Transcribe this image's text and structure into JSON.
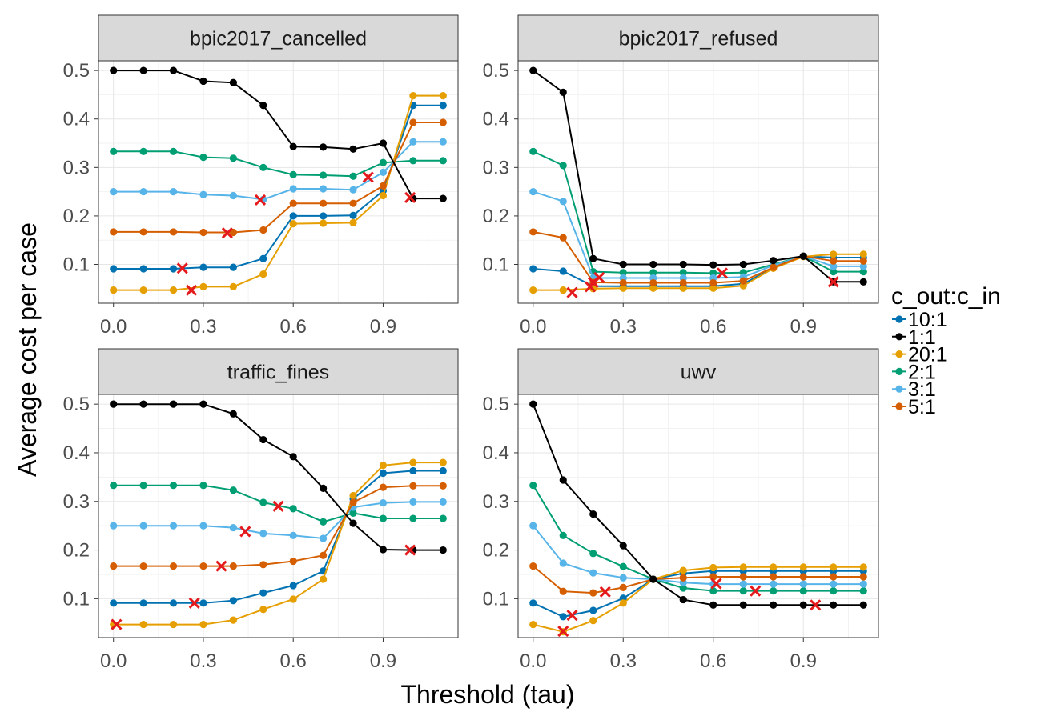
{
  "chart_data": {
    "type": "line",
    "xlabel": "Threshold (tau)",
    "ylabel": "Average cost per case",
    "xlim": [
      -0.05,
      1.15
    ],
    "ylim": [
      0.02,
      0.52
    ],
    "x_ticks": [
      0.0,
      0.3,
      0.6,
      0.9
    ],
    "x_tick_labels": [
      "0.0",
      "0.3",
      "0.6",
      "0.9"
    ],
    "y_ticks": [
      0.1,
      0.2,
      0.3,
      0.4,
      0.5
    ],
    "y_tick_labels": [
      "0.1",
      "0.2",
      "0.3",
      "0.4",
      "0.5"
    ],
    "grid": true,
    "legend": {
      "title": "c_out:c_in",
      "position": "right",
      "entries": [
        {
          "label": "10:1",
          "color": "#0072B2"
        },
        {
          "label": "1:1",
          "color": "#000000"
        },
        {
          "label": "20:1",
          "color": "#E69F00"
        },
        {
          "label": "2:1",
          "color": "#009E73"
        },
        {
          "label": "3:1",
          "color": "#56B4E9"
        },
        {
          "label": "5:1",
          "color": "#D55E00"
        }
      ]
    },
    "marker_color": "#E41A1C",
    "x": [
      0.0,
      0.1,
      0.2,
      0.3,
      0.4,
      0.5,
      0.6,
      0.7,
      0.8,
      0.9,
      1.0,
      1.1
    ],
    "panels": [
      {
        "title": "bpic2017_cancelled",
        "series": [
          {
            "name": "1:1",
            "values": [
              0.5,
              0.5,
              0.5,
              0.478,
              0.475,
              0.428,
              0.343,
              0.342,
              0.338,
              0.35,
              0.236,
              0.236
            ],
            "best": [
              0.99,
              0.238
            ]
          },
          {
            "name": "2:1",
            "values": [
              0.333,
              0.333,
              0.333,
              0.321,
              0.319,
              0.3,
              0.285,
              0.284,
              0.282,
              0.31,
              0.314,
              0.314
            ],
            "best": [
              0.85,
              0.28
            ]
          },
          {
            "name": "3:1",
            "values": [
              0.25,
              0.25,
              0.25,
              0.244,
              0.242,
              0.234,
              0.256,
              0.256,
              0.254,
              0.29,
              0.353,
              0.353
            ],
            "best": [
              0.49,
              0.233
            ]
          },
          {
            "name": "5:1",
            "values": [
              0.167,
              0.167,
              0.167,
              0.166,
              0.166,
              0.171,
              0.226,
              0.226,
              0.226,
              0.262,
              0.393,
              0.393
            ],
            "best": [
              0.38,
              0.165
            ]
          },
          {
            "name": "10:1",
            "values": [
              0.091,
              0.091,
              0.091,
              0.094,
              0.094,
              0.112,
              0.2,
              0.2,
              0.201,
              0.252,
              0.428,
              0.428
            ],
            "best": [
              0.23,
              0.092
            ]
          },
          {
            "name": "20:1",
            "values": [
              0.047,
              0.047,
              0.047,
              0.054,
              0.054,
              0.08,
              0.184,
              0.185,
              0.186,
              0.242,
              0.448,
              0.448
            ],
            "best": [
              0.26,
              0.047
            ]
          }
        ]
      },
      {
        "title": "bpic2017_refused",
        "series": [
          {
            "name": "1:1",
            "values": [
              0.5,
              0.455,
              0.112,
              0.1,
              0.1,
              0.1,
              0.099,
              0.1,
              0.108,
              0.117,
              0.064,
              0.064
            ],
            "best": [
              1.0,
              0.064
            ]
          },
          {
            "name": "2:1",
            "values": [
              0.333,
              0.304,
              0.085,
              0.083,
              0.083,
              0.083,
              0.082,
              0.083,
              0.1,
              0.117,
              0.085,
              0.085
            ],
            "best": [
              0.63,
              0.082
            ]
          },
          {
            "name": "3:1",
            "values": [
              0.25,
              0.23,
              0.072,
              0.072,
              0.072,
              0.072,
              0.072,
              0.074,
              0.098,
              0.117,
              0.096,
              0.096
            ],
            "best": [
              0.22,
              0.073
            ]
          },
          {
            "name": "5:1",
            "values": [
              0.167,
              0.155,
              0.063,
              0.062,
              0.062,
              0.062,
              0.062,
              0.066,
              0.094,
              0.117,
              0.107,
              0.107
            ],
            "best": [
              0.2,
              0.063
            ]
          },
          {
            "name": "10:1",
            "values": [
              0.091,
              0.086,
              0.055,
              0.055,
              0.055,
              0.055,
              0.055,
              0.06,
              0.093,
              0.117,
              0.114,
              0.114
            ],
            "best": [
              0.19,
              0.054
            ]
          },
          {
            "name": "20:1",
            "values": [
              0.047,
              0.047,
              0.05,
              0.051,
              0.051,
              0.051,
              0.051,
              0.056,
              0.092,
              0.116,
              0.121,
              0.121
            ],
            "best": [
              0.13,
              0.042
            ]
          }
        ]
      },
      {
        "title": "traffic_fines",
        "series": [
          {
            "name": "1:1",
            "values": [
              0.5,
              0.5,
              0.5,
              0.5,
              0.48,
              0.427,
              0.392,
              0.327,
              0.255,
              0.201,
              0.2,
              0.2
            ],
            "best": [
              0.99,
              0.2
            ]
          },
          {
            "name": "2:1",
            "values": [
              0.333,
              0.333,
              0.333,
              0.333,
              0.323,
              0.298,
              0.285,
              0.258,
              0.276,
              0.265,
              0.265,
              0.265
            ],
            "best": [
              0.55,
              0.29
            ]
          },
          {
            "name": "3:1",
            "values": [
              0.25,
              0.25,
              0.25,
              0.25,
              0.246,
              0.234,
              0.23,
              0.224,
              0.288,
              0.297,
              0.299,
              0.299
            ],
            "best": [
              0.44,
              0.238
            ]
          },
          {
            "name": "5:1",
            "values": [
              0.167,
              0.167,
              0.167,
              0.167,
              0.167,
              0.17,
              0.177,
              0.189,
              0.298,
              0.329,
              0.332,
              0.332
            ],
            "best": [
              0.36,
              0.167
            ]
          },
          {
            "name": "10:1",
            "values": [
              0.091,
              0.091,
              0.091,
              0.091,
              0.096,
              0.112,
              0.127,
              0.157,
              0.305,
              0.358,
              0.363,
              0.363
            ],
            "best": [
              0.27,
              0.091
            ]
          },
          {
            "name": "20:1",
            "values": [
              0.047,
              0.047,
              0.047,
              0.047,
              0.056,
              0.078,
              0.099,
              0.14,
              0.312,
              0.374,
              0.38,
              0.38
            ],
            "best": [
              0.01,
              0.047
            ]
          }
        ]
      },
      {
        "title": "uwv",
        "series": [
          {
            "name": "1:1",
            "values": [
              0.5,
              0.344,
              0.274,
              0.209,
              0.14,
              0.098,
              0.087,
              0.087,
              0.087,
              0.087,
              0.087,
              0.087
            ],
            "best": [
              0.94,
              0.087
            ]
          },
          {
            "name": "2:1",
            "values": [
              0.333,
              0.23,
              0.193,
              0.166,
              0.14,
              0.122,
              0.116,
              0.116,
              0.116,
              0.116,
              0.116,
              0.116
            ],
            "best": [
              0.74,
              0.116
            ]
          },
          {
            "name": "3:1",
            "values": [
              0.25,
              0.173,
              0.153,
              0.143,
              0.14,
              0.133,
              0.13,
              0.13,
              0.13,
              0.13,
              0.13,
              0.13
            ],
            "best": [
              0.61,
              0.131
            ]
          },
          {
            "name": "5:1",
            "values": [
              0.167,
              0.115,
              0.112,
              0.123,
              0.14,
              0.143,
              0.145,
              0.145,
              0.145,
              0.145,
              0.145,
              0.145
            ],
            "best": [
              0.24,
              0.114
            ]
          },
          {
            "name": "10:1",
            "values": [
              0.091,
              0.063,
              0.076,
              0.101,
              0.14,
              0.152,
              0.157,
              0.157,
              0.157,
              0.157,
              0.157,
              0.157
            ],
            "best": [
              0.13,
              0.066
            ]
          },
          {
            "name": "20:1",
            "values": [
              0.047,
              0.032,
              0.055,
              0.091,
              0.14,
              0.158,
              0.164,
              0.165,
              0.165,
              0.165,
              0.165,
              0.165
            ],
            "best": [
              0.1,
              0.033
            ]
          }
        ]
      }
    ]
  }
}
